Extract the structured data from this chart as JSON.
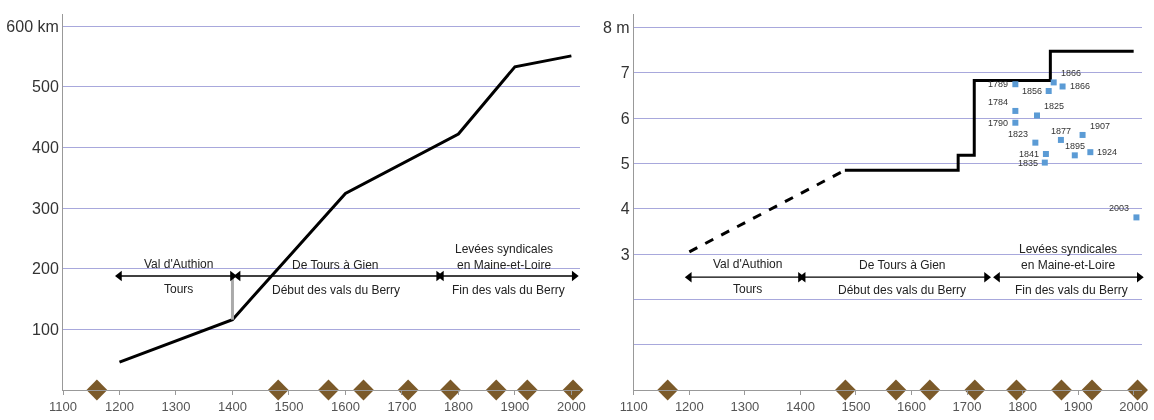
{
  "chart_data": [
    {
      "type": "line",
      "xlim": [
        1100,
        2015
      ],
      "xticks": [
        1100,
        1200,
        1300,
        1400,
        1500,
        1600,
        1700,
        1800,
        1900,
        2000
      ],
      "ylim": [
        0,
        620
      ],
      "yticks": [
        100,
        200,
        300,
        400,
        500,
        {
          "value": 600,
          "label": "600 km"
        }
      ],
      "grid": "y",
      "series": [
        {
          "color": "#000000",
          "x": [
            1200,
            1400,
            1600,
            1800,
            1900,
            2000
          ],
          "values": [
            46,
            116,
            324,
            422,
            533,
            551
          ]
        },
        {
          "color": "#aaaaaa",
          "x": [
            1400,
            1400
          ],
          "values": [
            116,
            188
          ]
        },
        {
          "color": "#000000",
          "marker": "triangle",
          "x": [
            1200,
            1400
          ],
          "values": [
            188,
            188
          ]
        },
        {
          "color": "#000000",
          "marker": "triangle",
          "x": [
            1410,
            1765
          ],
          "values": [
            188,
            188
          ]
        },
        {
          "color": "#000000",
          "marker": "triangle",
          "x": [
            1770,
            2005
          ],
          "values": [
            188,
            188
          ]
        },
        {
          "type": "scatter",
          "color": "#7b5a2a",
          "marker": "diamond",
          "x": [
            1160,
            1481,
            1570,
            1632,
            1711,
            1786,
            1867,
            1922,
            2003
          ],
          "values": [
            0,
            0,
            0,
            0,
            0,
            0,
            0,
            0,
            0
          ]
        }
      ],
      "annotations": [
        "Val d'Authion",
        "Tours",
        "De Tours à Gien",
        "Début des vals du Berry",
        "Levées syndicales\nen Maine-et-Loire",
        "Fin des vals du Berry"
      ]
    },
    {
      "type": "line",
      "xlim": [
        1100,
        2015
      ],
      "xticks": [
        1100,
        1200,
        1300,
        1400,
        1500,
        1600,
        1700,
        1800,
        1900,
        2000
      ],
      "ylim": [
        0,
        8.3
      ],
      "yticks": [
        {
          "value": 1,
          "label": null
        },
        {
          "value": 2,
          "label": null
        },
        3,
        4,
        5,
        6,
        7,
        {
          "value": 8,
          "label": "8 m"
        }
      ],
      "grid": "y",
      "series": [
        {
          "color": "#000000",
          "line_style": "dashed",
          "x": [
            1200,
            1480
          ],
          "values": [
            3.05,
            4.85
          ]
        },
        {
          "type": "step",
          "color": "#000000",
          "x": [
            1480,
            1684,
            1713,
            1850,
            2000
          ],
          "values": [
            4.85,
            5.18,
            6.83,
            7.48,
            7.48
          ]
        },
        {
          "type": "scatter",
          "color": "#5b9bd5",
          "marker": "square",
          "x": [
            1787,
            1847,
            1856,
            1872,
            1787,
            1826,
            1787,
            1823,
            1869,
            1908,
            1842,
            1894,
            1922,
            1840,
            2005
          ],
          "values": [
            6.75,
            6.6,
            6.79,
            6.7,
            6.16,
            6.06,
            5.9,
            5.46,
            5.52,
            5.63,
            5.21,
            5.18,
            5.25,
            5.02,
            3.81
          ]
        },
        {
          "color": "#000000",
          "marker": "triangle",
          "x": [
            1200,
            1400
          ],
          "values": [
            2.49,
            2.49
          ]
        },
        {
          "color": "#000000",
          "marker": "triangle",
          "x": [
            1405,
            1735
          ],
          "values": [
            2.49,
            2.49
          ]
        },
        {
          "color": "#000000",
          "marker": "triangle",
          "x": [
            1755,
            2010
          ],
          "values": [
            2.49,
            2.49
          ]
        },
        {
          "type": "scatter",
          "color": "#7b5a2a",
          "marker": "diamond",
          "x": [
            1161,
            1481,
            1572,
            1633,
            1714,
            1789,
            1870,
            1925,
            2007
          ],
          "values": [
            0,
            0,
            0,
            0,
            0,
            0,
            0,
            0,
            0
          ]
        }
      ],
      "annotations": [
        "Val d'Authion",
        "Tours",
        "De Tours à Gien",
        "Début des vals du Berry",
        "Levées syndicales\nen Maine-et-Loire",
        "Fin des vals du Berry",
        {
          "text": "1789",
          "x": 1787,
          "y": 6.75
        },
        {
          "text": "1856",
          "x": 1847,
          "y": 6.6
        },
        {
          "text": "1866",
          "x": 1856,
          "y": 6.79
        },
        {
          "text": "1866",
          "x": 1872,
          "y": 6.7
        },
        {
          "text": "1784",
          "x": 1787,
          "y": 6.16
        },
        {
          "text": "1825",
          "x": 1826,
          "y": 6.06
        },
        {
          "text": "1790",
          "x": 1787,
          "y": 5.9
        },
        {
          "text": "1823",
          "x": 1823,
          "y": 5.46
        },
        {
          "text": "1877",
          "x": 1869,
          "y": 5.52
        },
        {
          "text": "1907",
          "x": 1908,
          "y": 5.63
        },
        {
          "text": "1841",
          "x": 1842,
          "y": 5.21
        },
        {
          "text": "1895",
          "x": 1894,
          "y": 5.18
        },
        {
          "text": "1924",
          "x": 1922,
          "y": 5.25
        },
        {
          "text": "1835",
          "x": 1840,
          "y": 5.02
        },
        {
          "text": "2003",
          "x": 2005,
          "y": 3.81
        }
      ]
    }
  ]
}
